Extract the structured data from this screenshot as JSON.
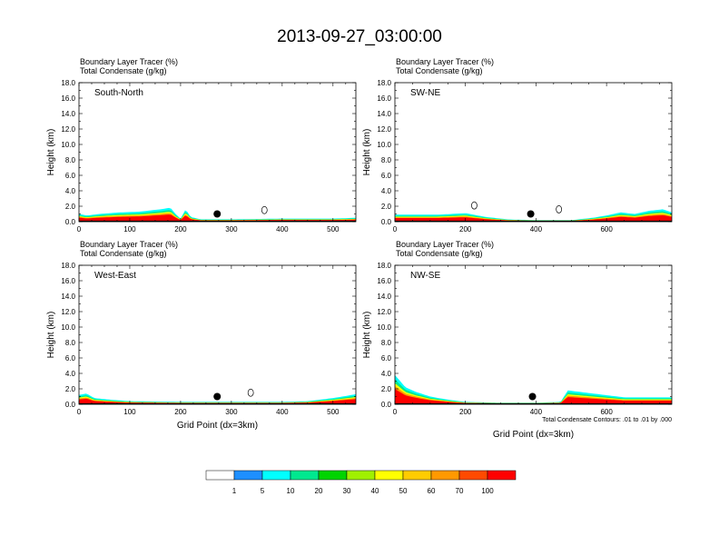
{
  "title": "2013-09-27_03:00:00",
  "chart_data": {
    "type": "heatmap",
    "panels": [
      {
        "name": "South-North",
        "header_lines": [
          "Boundary Layer Tracer   (%)",
          "Total Condensate   (g/kg)"
        ],
        "ylabel": "Height (km)",
        "xlabel": "",
        "ylim": [
          0,
          18
        ],
        "yticks": [
          "0.0",
          "2.0",
          "4.0",
          "6.0",
          "8.0",
          "10.0",
          "12.0",
          "14.0",
          "16.0",
          "18.0"
        ],
        "xlim": [
          0,
          545
        ],
        "xticks": [
          0,
          100,
          200,
          300,
          400,
          500
        ],
        "marker_x": 272,
        "note": "",
        "tracer_profile": [
          [
            0,
            1.0
          ],
          [
            15,
            0.8
          ],
          [
            40,
            1.0
          ],
          [
            80,
            1.2
          ],
          [
            120,
            1.3
          ],
          [
            160,
            1.6
          ],
          [
            180,
            1.8
          ],
          [
            190,
            1.0
          ],
          [
            200,
            0.4
          ],
          [
            210,
            1.6
          ],
          [
            220,
            0.6
          ],
          [
            240,
            0.3
          ],
          [
            300,
            0.3
          ],
          [
            400,
            0.4
          ],
          [
            500,
            0.4
          ],
          [
            545,
            0.5
          ]
        ],
        "condensate_marks": [
          {
            "x": 365,
            "y": 1.5
          }
        ]
      },
      {
        "name": "SW-NE",
        "header_lines": [
          "Boundary Layer Tracer   (%)",
          "Total Condensate   (g/kg)"
        ],
        "ylabel": "Height (km)",
        "xlabel": "",
        "ylim": [
          0,
          18
        ],
        "yticks": [
          "0.0",
          "2.0",
          "4.0",
          "6.0",
          "8.0",
          "10.0",
          "12.0",
          "14.0",
          "16.0",
          "18.0"
        ],
        "xlim": [
          0,
          785
        ],
        "xticks": [
          0,
          200,
          400,
          600
        ],
        "marker_x": 385,
        "note": "",
        "tracer_profile": [
          [
            0,
            0.9
          ],
          [
            50,
            0.9
          ],
          [
            120,
            0.9
          ],
          [
            200,
            1.1
          ],
          [
            260,
            0.6
          ],
          [
            320,
            0.3
          ],
          [
            400,
            0.2
          ],
          [
            500,
            0.2
          ],
          [
            560,
            0.5
          ],
          [
            600,
            0.8
          ],
          [
            640,
            1.2
          ],
          [
            680,
            1.0
          ],
          [
            720,
            1.4
          ],
          [
            760,
            1.6
          ],
          [
            785,
            1.2
          ]
        ],
        "condensate_marks": [
          {
            "x": 225,
            "y": 2.1
          },
          {
            "x": 465,
            "y": 1.6
          }
        ]
      },
      {
        "name": "West-East",
        "header_lines": [
          "Boundary Layer Tracer   (%)",
          "Total Condensate   (g/kg)"
        ],
        "ylabel": "Height (km)",
        "xlabel": "Grid Point (dx=3km)",
        "ylim": [
          0,
          18
        ],
        "yticks": [
          "0.0",
          "2.0",
          "4.0",
          "6.0",
          "8.0",
          "10.0",
          "12.0",
          "14.0",
          "16.0",
          "18.0"
        ],
        "xlim": [
          0,
          545
        ],
        "xticks": [
          0,
          100,
          200,
          300,
          400,
          500
        ],
        "marker_x": 272,
        "note": "",
        "tracer_profile": [
          [
            0,
            1.2
          ],
          [
            15,
            1.4
          ],
          [
            30,
            0.8
          ],
          [
            60,
            0.6
          ],
          [
            100,
            0.4
          ],
          [
            200,
            0.3
          ],
          [
            300,
            0.3
          ],
          [
            400,
            0.3
          ],
          [
            450,
            0.4
          ],
          [
            500,
            0.8
          ],
          [
            545,
            1.3
          ]
        ],
        "condensate_marks": [
          {
            "x": 338,
            "y": 1.5
          }
        ]
      },
      {
        "name": "NW-SE",
        "header_lines": [
          "Boundary Layer Tracer   (%)",
          "Total Condensate   (g/kg)"
        ],
        "ylabel": "Height (km)",
        "xlabel": "Grid Point (dx=3km)",
        "ylim": [
          0,
          18
        ],
        "yticks": [
          "0.0",
          "2.0",
          "4.0",
          "6.0",
          "8.0",
          "10.0",
          "12.0",
          "14.0",
          "16.0",
          "18.0"
        ],
        "xlim": [
          0,
          785
        ],
        "xticks": [
          0,
          200,
          400,
          600
        ],
        "marker_x": 390,
        "note": "Total Condensate Contours: .01 to .01 by .000",
        "tracer_profile": [
          [
            0,
            3.8
          ],
          [
            15,
            3.0
          ],
          [
            30,
            2.2
          ],
          [
            60,
            1.6
          ],
          [
            100,
            1.0
          ],
          [
            150,
            0.6
          ],
          [
            200,
            0.3
          ],
          [
            300,
            0.2
          ],
          [
            400,
            0.2
          ],
          [
            470,
            0.3
          ],
          [
            490,
            1.8
          ],
          [
            560,
            1.4
          ],
          [
            650,
            0.9
          ],
          [
            785,
            0.9
          ]
        ],
        "condensate_marks": []
      }
    ],
    "colorbar": {
      "labels": [
        "1",
        "5",
        "10",
        "20",
        "30",
        "40",
        "50",
        "60",
        "70",
        "100"
      ],
      "colors": [
        "#ffffff",
        "#1e8fff",
        "#00ffff",
        "#00e88f",
        "#00d400",
        "#a0f000",
        "#ffff00",
        "#ffcc00",
        "#ff9900",
        "#ff4a00",
        "#ff0000"
      ]
    }
  }
}
